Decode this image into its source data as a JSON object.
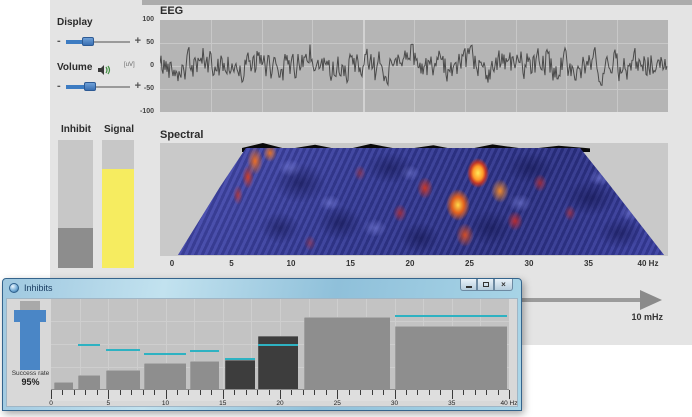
{
  "app": {
    "display_slider": {
      "label": "Display",
      "minus": "-",
      "plus": "+",
      "value_pct": 35
    },
    "volume_slider": {
      "label": "Volume",
      "minus": "-",
      "plus": "+",
      "value_pct": 38,
      "icon": "speaker-icon"
    },
    "inhibit_meter": {
      "label": "Inhibit",
      "fill_pct": 31
    },
    "signal_meter": {
      "label": "Signal",
      "fill_pct": 77,
      "fill_color": "#f6ec60"
    },
    "eeg_panel": {
      "title": "EEG",
      "unit_label": "[uV]"
    },
    "spectral_panel": {
      "title": "Spectral"
    },
    "freq_arrow": {
      "label": "10 mHz"
    }
  },
  "inhibits_window": {
    "title": "Inhibits",
    "window_buttons": {
      "minimize": "minimize-icon",
      "maximize": "maximize-icon",
      "close": "close-icon",
      "close_glyph": "×"
    },
    "success_rate": {
      "label": "Success rate",
      "value": "95%"
    },
    "threshold_color": "#2eb2c2",
    "bar_color": "#8e8e8e",
    "dark_bar_color": "#3d3d3d"
  },
  "chart_data": [
    {
      "name": "eeg",
      "type": "line",
      "title": "EEG",
      "ylabel": "[uV]",
      "y_ticks": [
        "100",
        "50",
        "0",
        "-50",
        "-100"
      ],
      "ylim": [
        -100,
        100
      ],
      "grid": true,
      "description": "continuous noisy EEG voltage trace centered on 0 uV, amplitude mostly within +/-50 uV"
    },
    {
      "name": "spectral",
      "type": "heatmap",
      "title": "Spectral",
      "x_ticks": [
        "0",
        "5",
        "10",
        "15",
        "20",
        "25",
        "30",
        "35",
        "40 Hz"
      ],
      "xlim": [
        0,
        40
      ],
      "xlabel": "Hz",
      "description": "3D spectral surface over 0-40 Hz; blue terrain with red/yellow power peaks concentrated around 20-27 Hz and along the left (low-frequency) edge"
    },
    {
      "name": "inhibits",
      "type": "bar",
      "xlim": [
        0,
        40
      ],
      "x_ticks": [
        "0",
        "5",
        "10",
        "15",
        "20",
        "25",
        "30",
        "35",
        "40 Hz"
      ],
      "bars": [
        {
          "from_hz": 0.3,
          "to_hz": 1.9,
          "height_pct": 8,
          "threshold_pct": null,
          "dark": false
        },
        {
          "from_hz": 2.4,
          "to_hz": 4.3,
          "height_pct": 16,
          "threshold_pct": 48,
          "dark": false
        },
        {
          "from_hz": 4.8,
          "to_hz": 7.8,
          "height_pct": 21,
          "threshold_pct": 42,
          "dark": false
        },
        {
          "from_hz": 8.1,
          "to_hz": 11.8,
          "height_pct": 29,
          "threshold_pct": 38,
          "dark": false
        },
        {
          "from_hz": 12.1,
          "to_hz": 14.7,
          "height_pct": 31,
          "threshold_pct": 41,
          "dark": false
        },
        {
          "from_hz": 15.2,
          "to_hz": 17.8,
          "height_pct": 32,
          "threshold_pct": 32,
          "dark": true
        },
        {
          "from_hz": 18.1,
          "to_hz": 21.6,
          "height_pct": 59,
          "threshold_pct": 48,
          "dark": true
        },
        {
          "from_hz": 22.1,
          "to_hz": 29.6,
          "height_pct": 80,
          "threshold_pct": null,
          "dark": false
        },
        {
          "from_hz": 30.0,
          "to_hz": 39.8,
          "height_pct": 70,
          "threshold_pct": 80,
          "dark": false
        }
      ]
    }
  ]
}
